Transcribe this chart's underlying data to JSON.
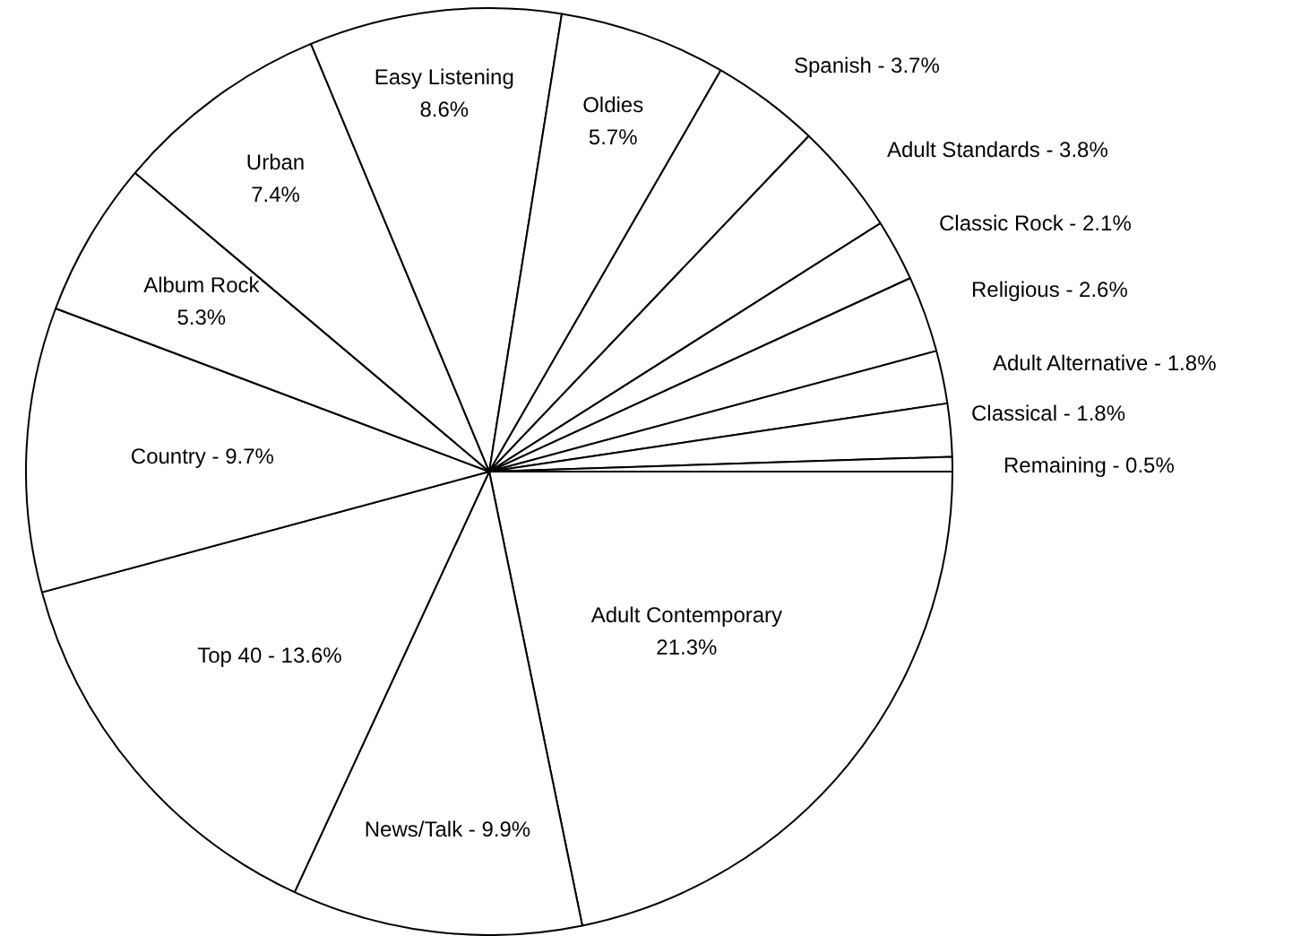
{
  "chart_data": {
    "type": "pie",
    "categories": [
      "Adult Contemporary",
      "News/Talk",
      "Top 40",
      "Country",
      "Album Rock",
      "Urban",
      "Easy Listening",
      "Oldies",
      "Spanish",
      "Adult Standards",
      "Classic Rock",
      "Religious",
      "Adult Alternative",
      "Classical",
      "Remaining"
    ],
    "values": [
      21.3,
      9.9,
      13.6,
      9.7,
      5.3,
      7.4,
      8.6,
      5.7,
      3.7,
      3.8,
      2.1,
      2.6,
      1.8,
      1.8,
      0.5
    ],
    "value_labels": [
      "21.3%",
      "9.9%",
      "13.6%",
      "9.7%",
      "5.3%",
      "7.4%",
      "8.6%",
      "5.7%",
      "3.7%",
      "3.8%",
      "2.1%",
      "2.6%",
      "1.8%",
      "1.8%",
      "0.5%"
    ],
    "colors": [
      "#ffffff",
      "#ffffff",
      "#ffffff",
      "#ffffff",
      "#ffffff",
      "#ffffff",
      "#ffffff",
      "#ffffff",
      "#ffffff",
      "#ffffff",
      "#ffffff",
      "#ffffff",
      "#ffffff",
      "#ffffff",
      "#ffffff"
    ],
    "legend": false
  }
}
